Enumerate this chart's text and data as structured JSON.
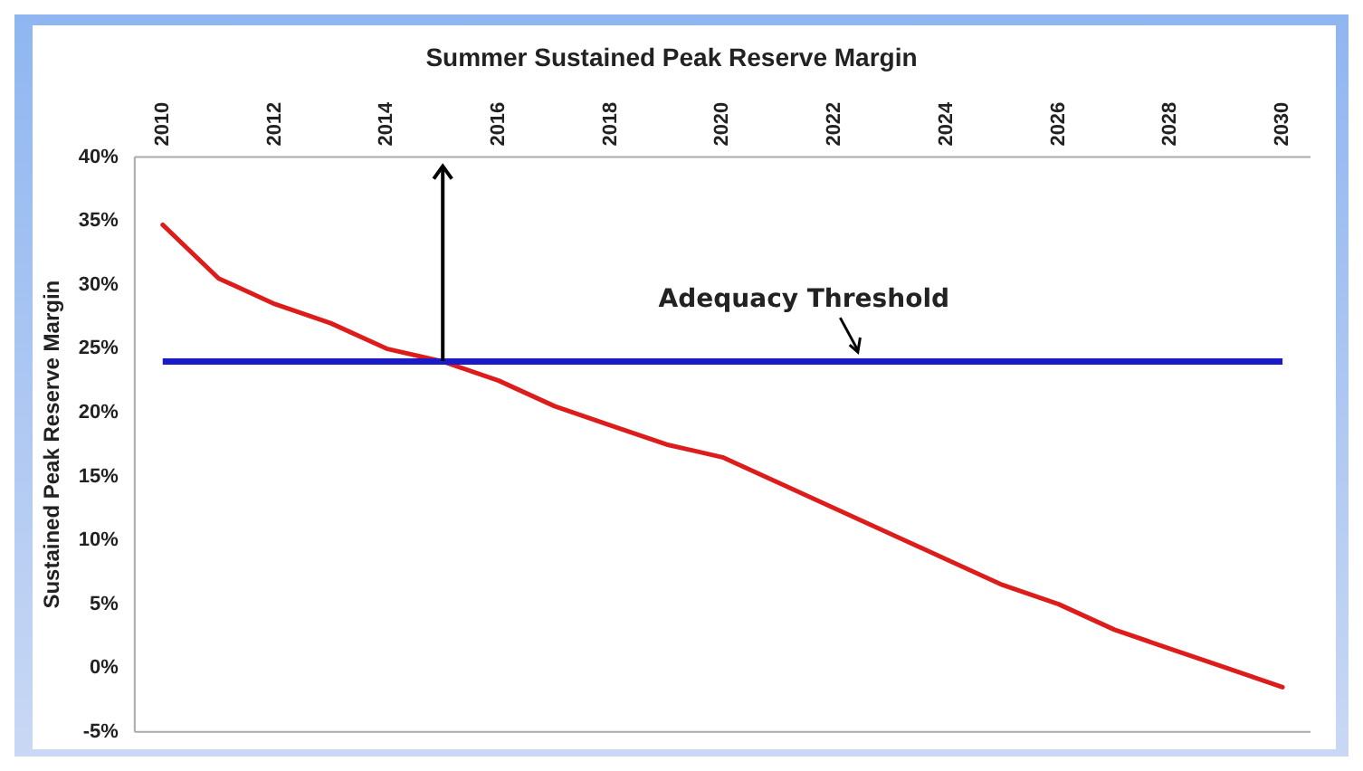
{
  "chart_data": {
    "type": "line",
    "title": "Summer Sustained Peak Reserve Margin",
    "ylabel": "Sustained Peak Reserve Margin",
    "x": [
      2010,
      2011,
      2012,
      2013,
      2014,
      2015,
      2016,
      2017,
      2018,
      2019,
      2020,
      2021,
      2022,
      2023,
      2024,
      2025,
      2026,
      2027,
      2028,
      2029,
      2030
    ],
    "series": [
      {
        "color": "#dd1c1c",
        "values": [
          34.7,
          30.5,
          28.5,
          27,
          25,
          24,
          22.5,
          20.5,
          19,
          17.5,
          16.5,
          14.5,
          12.5,
          10.5,
          8.5,
          6.5,
          5,
          3,
          1.5,
          0,
          -1.5
        ]
      }
    ],
    "xlim": [
      2009.5,
      2030.5
    ],
    "xticks": [
      2010,
      2012,
      2014,
      2016,
      2018,
      2020,
      2022,
      2024,
      2026,
      2028,
      2030
    ],
    "ylim": [
      -5,
      40
    ],
    "yticks": [
      {
        "value": -5,
        "label": "-5%"
      },
      {
        "value": 0,
        "label": "0%"
      },
      {
        "value": 5,
        "label": "5%"
      },
      {
        "value": 10,
        "label": "10%"
      },
      {
        "value": 15,
        "label": "15%"
      },
      {
        "value": 20,
        "label": "20%"
      },
      {
        "value": 25,
        "label": "25%"
      },
      {
        "value": 30,
        "label": "30%"
      },
      {
        "value": 35,
        "label": "35%"
      },
      {
        "value": 40,
        "label": "40%"
      }
    ],
    "ref_lines": [
      {
        "axis": "y",
        "value": 24,
        "label": "Adequacy Threshold",
        "color": "#1a1ac8"
      }
    ],
    "grid": false,
    "legend": false,
    "marker": "none",
    "line_style": "solid"
  }
}
